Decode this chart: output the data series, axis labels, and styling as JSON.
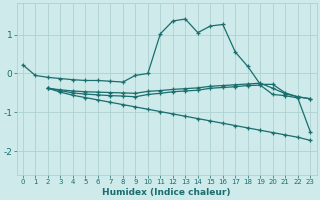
{
  "xlabel": "Humidex (Indice chaleur)",
  "background_color": "#ceeaea",
  "line_color": "#1a6e6e",
  "grid_color": "#a8cccc",
  "xlim": [
    -0.5,
    23.5
  ],
  "ylim": [
    -2.6,
    1.8
  ],
  "yticks": [
    -2,
    -1,
    0,
    1
  ],
  "xticks": [
    0,
    1,
    2,
    3,
    4,
    5,
    6,
    7,
    8,
    9,
    10,
    11,
    12,
    13,
    14,
    15,
    16,
    17,
    18,
    19,
    20,
    21,
    22,
    23
  ],
  "line1_x": [
    0,
    1,
    2,
    3,
    4,
    5,
    6,
    7,
    8,
    9,
    10,
    11,
    12,
    13,
    14,
    15,
    16,
    17,
    18,
    19,
    20,
    21,
    22,
    23
  ],
  "line1_y": [
    0.22,
    -0.05,
    -0.1,
    -0.13,
    -0.16,
    -0.18,
    -0.18,
    -0.2,
    -0.22,
    -0.05,
    0.0,
    1.02,
    1.35,
    1.4,
    1.05,
    1.22,
    1.26,
    0.55,
    0.18,
    -0.28,
    -0.28,
    -0.5,
    -0.6,
    -0.65
  ],
  "line2_x": [
    2,
    3,
    4,
    5,
    6,
    7,
    8,
    9,
    10,
    11,
    12,
    13,
    14,
    15,
    16,
    17,
    18,
    19,
    20,
    21,
    22,
    23
  ],
  "line2_y": [
    -0.38,
    -0.42,
    -0.45,
    -0.47,
    -0.48,
    -0.49,
    -0.5,
    -0.51,
    -0.46,
    -0.44,
    -0.41,
    -0.39,
    -0.37,
    -0.33,
    -0.31,
    -0.29,
    -0.27,
    -0.25,
    -0.38,
    -0.52,
    -0.6,
    -0.65
  ],
  "line3_x": [
    2,
    3,
    4,
    5,
    6,
    7,
    8,
    9,
    10,
    11,
    12,
    13,
    14,
    15,
    16,
    17,
    18,
    19,
    20,
    21,
    22,
    23
  ],
  "line3_y": [
    -0.38,
    -0.44,
    -0.5,
    -0.53,
    -0.55,
    -0.57,
    -0.58,
    -0.6,
    -0.54,
    -0.51,
    -0.47,
    -0.45,
    -0.43,
    -0.38,
    -0.36,
    -0.34,
    -0.31,
    -0.3,
    -0.54,
    -0.57,
    -0.63,
    -1.5
  ],
  "line4_x": [
    2,
    3,
    4,
    5,
    6,
    7,
    8,
    9,
    10,
    11,
    12,
    13,
    14,
    15,
    16,
    17,
    18,
    19,
    20,
    21,
    22,
    23
  ],
  "line4_y": [
    -0.38,
    -0.48,
    -0.56,
    -0.62,
    -0.68,
    -0.74,
    -0.8,
    -0.86,
    -0.92,
    -0.98,
    -1.04,
    -1.1,
    -1.16,
    -1.22,
    -1.28,
    -1.34,
    -1.4,
    -1.46,
    -1.52,
    -1.58,
    -1.64,
    -1.72
  ]
}
